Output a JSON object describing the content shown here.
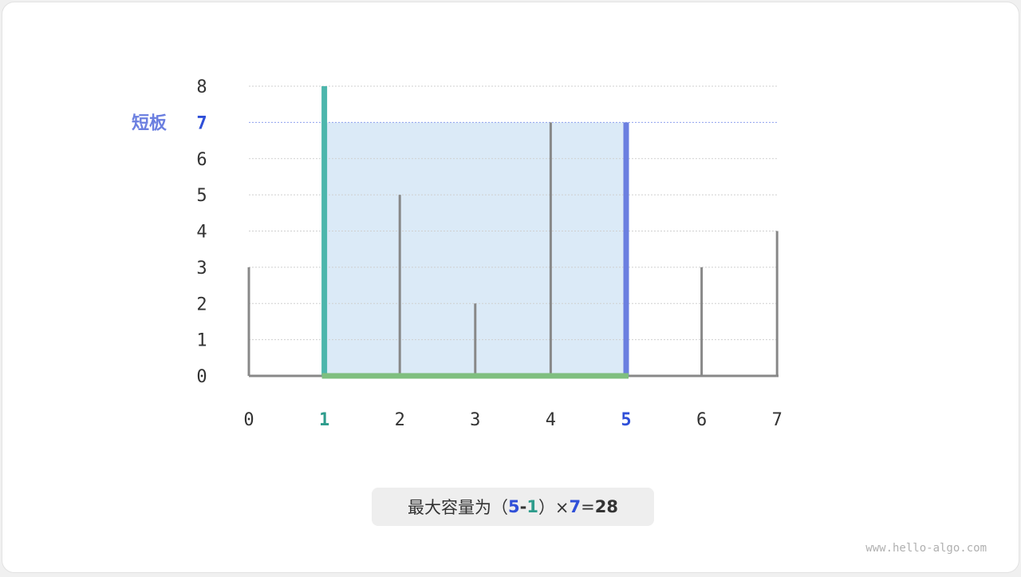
{
  "chart_data": {
    "type": "bar",
    "categories": [
      "0",
      "1",
      "2",
      "3",
      "4",
      "5",
      "6",
      "7"
    ],
    "values": [
      3,
      8,
      5,
      2,
      7,
      7,
      3,
      4
    ],
    "ylim": [
      0,
      8
    ],
    "yticks": [
      "0",
      "1",
      "2",
      "3",
      "4",
      "5",
      "6",
      "7",
      "8"
    ],
    "grid": true,
    "left_index": 1,
    "right_index": 5,
    "short_height": 7,
    "short_label": "短板",
    "colors": {
      "bar": "#888888",
      "left": "#4db6ac",
      "right": "#6b7fe0",
      "area": "#dbeaf7",
      "base": "#7fbf7f",
      "highlight_blue": "#2f4fd8",
      "highlight_green": "#2e9c8c"
    }
  },
  "caption": {
    "prefix": "最大容量为（",
    "a": "5",
    "minus": "-",
    "b": "1",
    "close": "）× ",
    "h": "7",
    "eq": " = ",
    "result": "28"
  },
  "watermark": "www.hello-algo.com"
}
